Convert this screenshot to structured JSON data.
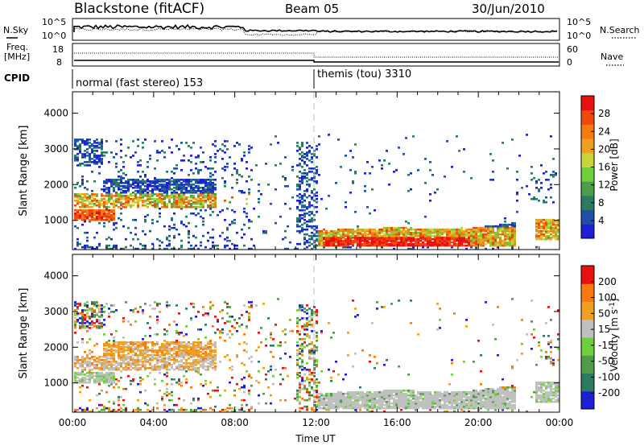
{
  "header": {
    "radar": "Blackstone (fitACF)",
    "beam": "Beam 05",
    "date": "30/Jun/2010"
  },
  "top_panels": {
    "nsky_label": "N.Sky",
    "nsky_ticks": [
      "10^5",
      "10^0"
    ],
    "nsearch_label": "N.Search",
    "freq_label_1": "Freq.",
    "freq_label_2": "[MHz]",
    "freq_ticks": [
      "18",
      "8"
    ],
    "nave_label": "Nave",
    "nave_ticks": [
      "60",
      "0"
    ],
    "cpid_label": "CPID",
    "cpid_1": "normal (fast stereo) 153",
    "cpid_2": "themis (tou) 3310"
  },
  "chart_data": [
    {
      "type": "heatmap",
      "name": "power",
      "xlabel": "",
      "ylabel": "Slant Range [km]",
      "xlim": [
        0,
        24
      ],
      "ylim": [
        180,
        4600
      ],
      "y_ticks": [
        "4000",
        "3000",
        "2000",
        "1000"
      ],
      "colorbar_label": "Power [dB]",
      "colorbar_ticks": [
        "28",
        "24",
        "20",
        "16",
        "12",
        "8",
        "4"
      ],
      "colors": [
        "#1e1ed7",
        "#1f4fa8",
        "#2c7a60",
        "#4f9b4c",
        "#6ecf3a",
        "#c8d437",
        "#f0a020",
        "#f57a10",
        "#f04a0a",
        "#e81010"
      ],
      "features": [
        {
          "x": [
            0.1,
            2.0
          ],
          "y": [
            1050,
            1250
          ],
          "level": 8
        },
        {
          "x": [
            0.0,
            1.8
          ],
          "y": [
            1400,
            1700
          ],
          "level": 6
        },
        {
          "x": [
            1.5,
            6.8
          ],
          "y": [
            1500,
            2100
          ],
          "level": 3
        },
        {
          "x": [
            12.0,
            21.5
          ],
          "y": [
            300,
            800
          ],
          "level": 9
        },
        {
          "x": [
            22.8,
            24.0
          ],
          "y": [
            600,
            1000
          ],
          "level": 6
        }
      ]
    },
    {
      "type": "heatmap",
      "name": "velocity",
      "xlabel": "Time UT",
      "ylabel": "Slant Range [km]",
      "xlim": [
        0,
        24
      ],
      "ylim": [
        180,
        4600
      ],
      "x_ticks": [
        "00:00",
        "04:00",
        "08:00",
        "12:00",
        "16:00",
        "20:00",
        "00:00"
      ],
      "y_ticks": [
        "4000",
        "3000",
        "2000",
        "1000"
      ],
      "colorbar_label": "Velocity [m s^-1]",
      "colorbar_ticks": [
        "200",
        "100",
        "50",
        "15",
        "-15",
        "-50",
        "-100",
        "-200"
      ],
      "colors": [
        "#1e1ed7",
        "#2c7a60",
        "#4f9b4c",
        "#6ecf3a",
        "#c0c0c0",
        "#f0a020",
        "#f57a10",
        "#e81010"
      ]
    }
  ]
}
